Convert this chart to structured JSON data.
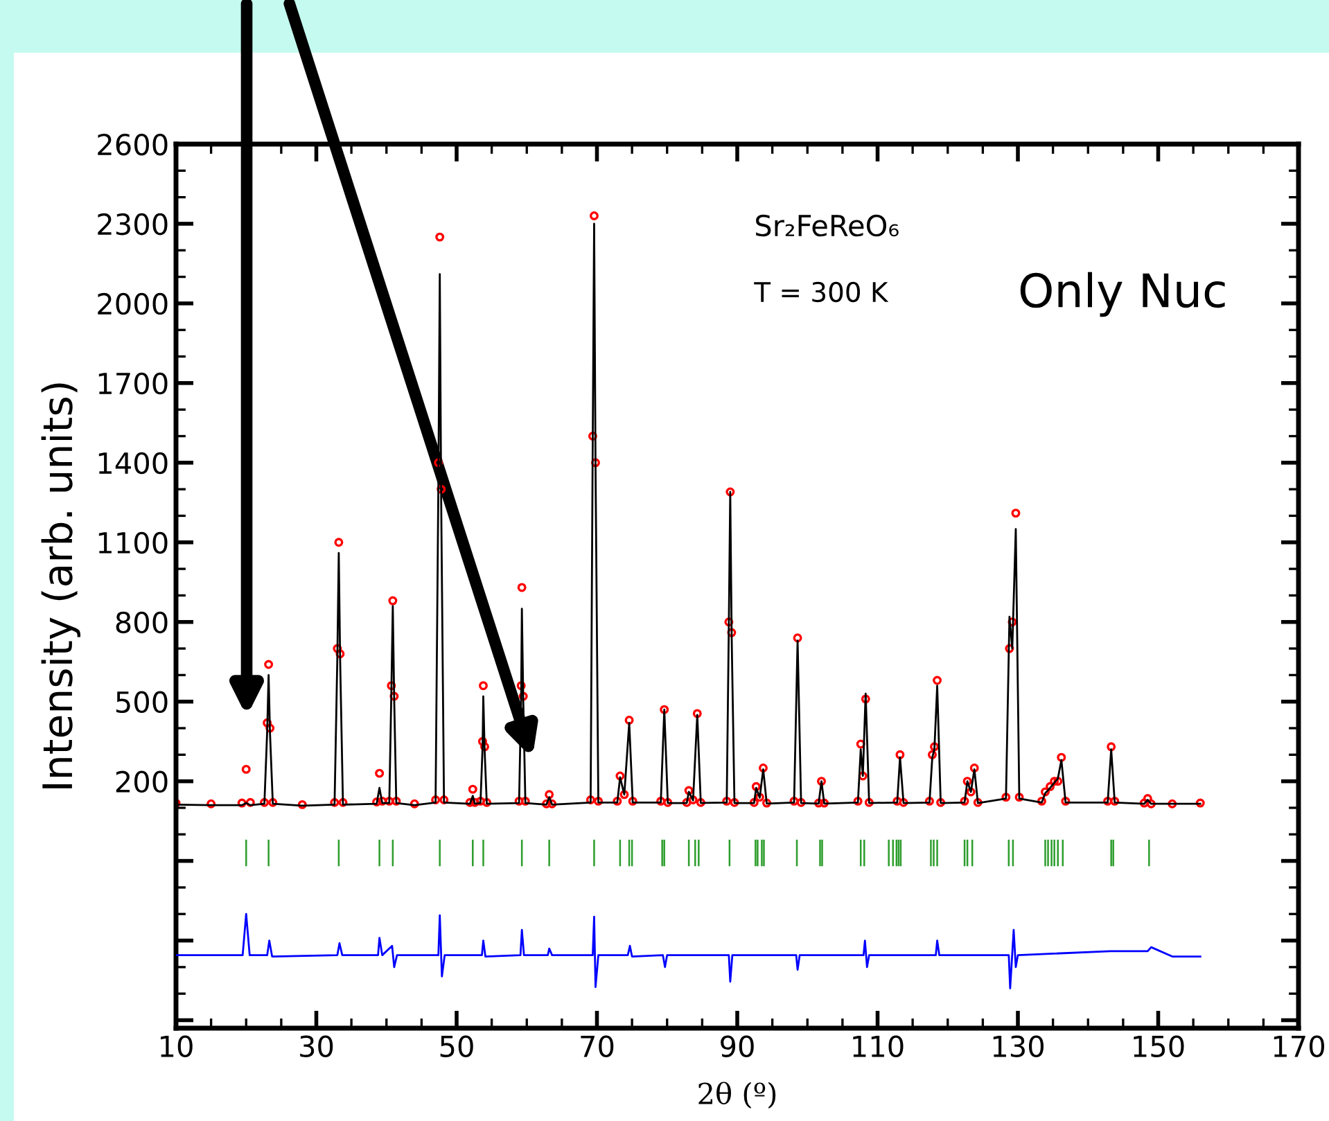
{
  "chart_data": {
    "type": "scatter",
    "xlabel": "2θ (º)",
    "ylabel": "Intensity (arb. units)",
    "annotations": [
      "Sr₂FeReO₆",
      "T = 300 K",
      "Only Nuc"
    ],
    "xlim": [
      10,
      170
    ],
    "xticks": [
      10,
      30,
      50,
      70,
      90,
      110,
      130,
      150,
      170
    ],
    "ylim": [
      -730,
      2600
    ],
    "yticks": [
      {
        "value": -700,
        "label": null
      },
      {
        "value": -400,
        "label": null
      },
      {
        "value": -100,
        "label": null
      },
      200,
      500,
      800,
      1100,
      1400,
      1700,
      2000,
      2300,
      2600
    ],
    "grid": false,
    "legend": false,
    "series": [
      {
        "marker": "circle",
        "color": "#ff0000",
        "x": [
          10,
          15,
          19.4,
          20.0,
          20.6,
          22.6,
          23.0,
          23.2,
          23.4,
          23.8,
          28,
          32.6,
          33.0,
          33.2,
          33.4,
          33.8,
          38.6,
          39.0,
          39.4,
          40.4,
          40.7,
          40.9,
          41.1,
          41.4,
          44,
          47.0,
          47.4,
          47.6,
          47.8,
          48.2,
          51.9,
          52.3,
          52.6,
          53.4,
          53.7,
          53.8,
          54.0,
          54.3,
          58.9,
          59.2,
          59.3,
          59.5,
          59.8,
          62.8,
          63.2,
          63.6,
          69.1,
          69.4,
          69.6,
          69.8,
          70.2,
          72.9,
          73.3,
          73.9,
          74.6,
          75.1,
          79.1,
          79.6,
          80.1,
          82.8,
          83.1,
          83.7,
          84.3,
          84.8,
          88.5,
          88.8,
          89.0,
          89.2,
          89.6,
          92.4,
          92.7,
          93.2,
          93.7,
          94.2,
          98.1,
          98.6,
          99.1,
          101.6,
          102.0,
          102.4,
          107.2,
          107.6,
          107.9,
          108.3,
          108.8,
          112.8,
          113.2,
          113.7,
          117.4,
          117.8,
          118.1,
          118.5,
          119.0,
          122.4,
          122.8,
          123.3,
          123.8,
          124.3,
          128.3,
          128.8,
          129.2,
          129.7,
          130.2,
          133.4,
          133.9,
          134.6,
          135.2,
          135.7,
          136.2,
          136.8,
          142.8,
          143.3,
          143.8,
          148.0,
          148.5,
          149.0,
          152,
          156
        ],
        "values": [
          118,
          115,
          118,
          245,
          120,
          120,
          420,
          640,
          400,
          120,
          112,
          120,
          700,
          1100,
          680,
          120,
          122,
          230,
          125,
          125,
          560,
          880,
          520,
          125,
          115,
          130,
          1400,
          2250,
          1300,
          130,
          120,
          170,
          120,
          125,
          350,
          560,
          330,
          120,
          125,
          560,
          930,
          520,
          125,
          115,
          150,
          115,
          130,
          1500,
          2330,
          1400,
          125,
          125,
          220,
          150,
          430,
          125,
          125,
          470,
          120,
          120,
          165,
          130,
          455,
          120,
          125,
          800,
          1290,
          760,
          120,
          120,
          180,
          140,
          250,
          118,
          125,
          740,
          120,
          118,
          200,
          118,
          125,
          340,
          220,
          510,
          120,
          125,
          300,
          120,
          125,
          300,
          330,
          580,
          120,
          125,
          200,
          160,
          250,
          120,
          140,
          700,
          800,
          1210,
          140,
          125,
          160,
          180,
          200,
          200,
          290,
          125,
          125,
          330,
          125,
          118,
          135,
          115,
          115,
          118
        ]
      },
      {
        "type": "line",
        "marker": "none",
        "color": "#000000",
        "x": [
          10,
          15,
          19.4,
          20.0,
          20.6,
          22.6,
          23.0,
          23.2,
          23.4,
          23.8,
          28,
          32.6,
          33.0,
          33.2,
          33.4,
          33.8,
          38.6,
          39.0,
          39.4,
          40.4,
          40.7,
          40.9,
          41.1,
          41.4,
          44,
          47.0,
          47.4,
          47.6,
          47.8,
          48.2,
          51.9,
          52.3,
          52.6,
          53.4,
          53.7,
          53.8,
          54.0,
          54.3,
          58.9,
          59.2,
          59.3,
          59.5,
          59.8,
          62.8,
          63.2,
          63.6,
          69.1,
          69.4,
          69.6,
          69.8,
          70.2,
          72.9,
          73.3,
          73.9,
          74.6,
          75.1,
          79.1,
          79.6,
          80.1,
          82.8,
          83.1,
          83.7,
          84.3,
          84.8,
          88.5,
          88.8,
          89.0,
          89.2,
          89.6,
          92.4,
          92.7,
          93.2,
          93.7,
          94.2,
          98.1,
          98.6,
          99.1,
          101.6,
          102.0,
          102.4,
          107.2,
          107.6,
          107.9,
          108.3,
          108.8,
          112.8,
          113.2,
          113.7,
          117.4,
          117.8,
          118.1,
          118.5,
          119.0,
          122.4,
          122.8,
          123.3,
          123.8,
          124.3,
          128.3,
          128.8,
          129.2,
          129.7,
          130.2,
          133.4,
          133.9,
          134.6,
          135.2,
          135.7,
          136.2,
          136.8,
          142.8,
          143.3,
          143.8,
          148.0,
          148.5,
          149.0,
          152,
          156
        ],
        "values": [
          112,
          110,
          110,
          118,
          110,
          115,
          390,
          600,
          380,
          115,
          108,
          112,
          670,
          1060,
          650,
          112,
          115,
          175,
          118,
          118,
          540,
          860,
          510,
          118,
          110,
          120,
          1320,
          2110,
          1250,
          120,
          115,
          145,
          115,
          118,
          330,
          520,
          310,
          115,
          118,
          520,
          850,
          500,
          118,
          112,
          140,
          112,
          120,
          1480,
          2300,
          1380,
          120,
          120,
          215,
          150,
          420,
          120,
          120,
          470,
          118,
          118,
          160,
          128,
          450,
          118,
          120,
          790,
          1290,
          750,
          118,
          118,
          175,
          138,
          245,
          116,
          120,
          730,
          118,
          116,
          200,
          116,
          120,
          320,
          220,
          530,
          118,
          120,
          290,
          118,
          120,
          290,
          320,
          560,
          118,
          120,
          200,
          160,
          245,
          118,
          135,
          820,
          700,
          1150,
          135,
          120,
          155,
          175,
          195,
          210,
          280,
          120,
          120,
          320,
          120,
          115,
          130,
          115,
          115,
          115
        ]
      },
      {
        "type": "bar",
        "color": "#2e9e2e",
        "base": [
          -120,
          -120,
          -120,
          -120,
          -120,
          -120,
          -120,
          -120,
          -120,
          -120,
          -120,
          -120,
          -120,
          -120,
          -120,
          -120,
          -120,
          -120,
          -120,
          -120,
          -120,
          -120,
          -120,
          -120,
          -120,
          -120,
          -120,
          -120,
          -120,
          -120,
          -120,
          -120,
          -120,
          -120,
          -120,
          -120,
          -120,
          -120,
          -120,
          -120,
          -120,
          -120,
          -120,
          -120,
          -120,
          -120,
          -120,
          -120,
          -120,
          -120,
          -120
        ],
        "x": [
          20.0,
          23.2,
          33.2,
          39.0,
          40.9,
          47.6,
          52.3,
          53.8,
          59.3,
          63.2,
          69.6,
          73.3,
          74.6,
          75.0,
          79.3,
          79.6,
          83.1,
          84.0,
          84.5,
          88.9,
          92.6,
          92.9,
          93.5,
          93.8,
          98.5,
          101.8,
          102.1,
          107.6,
          108.1,
          111.6,
          112.2,
          112.7,
          113.0,
          113.3,
          117.6,
          118.0,
          118.5,
          122.4,
          122.8,
          123.5,
          128.7,
          129.3,
          133.9,
          134.3,
          134.8,
          135.2,
          135.7,
          136.4,
          143.3,
          143.6,
          148.7
        ],
        "values": [
          100,
          100,
          100,
          100,
          100,
          100,
          100,
          100,
          100,
          100,
          100,
          100,
          100,
          100,
          100,
          100,
          100,
          100,
          100,
          100,
          100,
          100,
          100,
          100,
          100,
          100,
          100,
          100,
          100,
          100,
          100,
          100,
          100,
          100,
          100,
          100,
          100,
          100,
          100,
          100,
          100,
          100,
          100,
          100,
          100,
          100,
          100,
          100,
          100,
          100,
          100
        ]
      },
      {
        "type": "line",
        "marker": "none",
        "color": "#0000ff",
        "x": [
          10,
          19.5,
          20.0,
          20.5,
          23.0,
          23.3,
          23.7,
          33.0,
          33.3,
          33.7,
          38.8,
          39.0,
          39.4,
          40.8,
          41.1,
          41.5,
          47.4,
          47.6,
          47.9,
          48.3,
          53.6,
          53.8,
          54.1,
          59.1,
          59.3,
          59.6,
          63.0,
          63.2,
          63.6,
          69.4,
          69.6,
          69.8,
          70.2,
          74.4,
          74.7,
          75.0,
          79.4,
          79.7,
          80.0,
          88.8,
          89.0,
          89.3,
          98.4,
          98.6,
          98.9,
          108.0,
          108.2,
          108.5,
          108.8,
          118.3,
          118.5,
          118.8,
          128.7,
          128.9,
          129.4,
          129.7,
          130.0,
          143.2,
          148.5,
          149.0,
          152.0,
          156
        ],
        "values": [
          -455,
          -455,
          -300,
          -455,
          -455,
          -400,
          -460,
          -455,
          -410,
          -455,
          -455,
          -390,
          -455,
          -420,
          -500,
          -455,
          -455,
          -305,
          -535,
          -455,
          -455,
          -400,
          -460,
          -455,
          -360,
          -455,
          -455,
          -430,
          -455,
          -455,
          -310,
          -575,
          -455,
          -455,
          -420,
          -460,
          -455,
          -500,
          -455,
          -455,
          -555,
          -455,
          -455,
          -510,
          -455,
          -455,
          -400,
          -500,
          -455,
          -455,
          -400,
          -455,
          -455,
          -580,
          -360,
          -500,
          -455,
          -440,
          -440,
          -425,
          -460,
          -460
        ]
      }
    ]
  }
}
